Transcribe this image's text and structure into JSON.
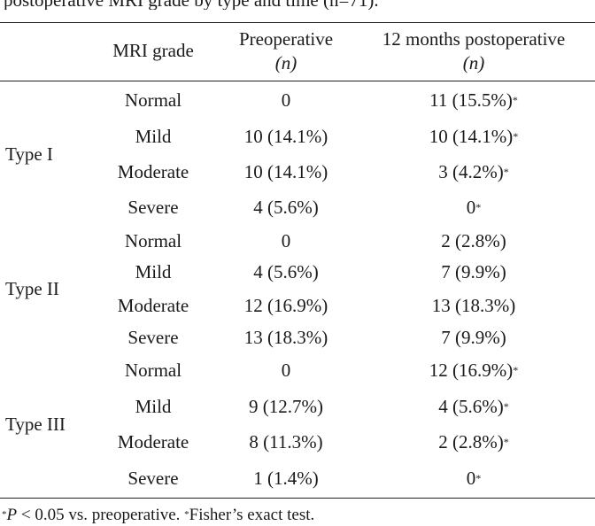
{
  "caption": "postoperative MRI grade by type and time (n=71).",
  "headers": {
    "grade": "MRI grade",
    "pre_line1": "Preoperative",
    "pre_line2": "(n)",
    "post_line1": "12 months postoperative",
    "post_line2": "(n)"
  },
  "groups": [
    {
      "type": "Type I",
      "rows": [
        {
          "grade": "Normal",
          "pre": "0",
          "post": "11 (15.5%)",
          "post_mark": "*"
        },
        {
          "grade": "Mild",
          "pre": "10 (14.1%)",
          "post": "10 (14.1%)",
          "post_mark": "*"
        },
        {
          "grade": "Moderate",
          "pre": "10 (14.1%)",
          "post": "3 (4.2%)",
          "post_mark": "*"
        },
        {
          "grade": "Severe",
          "pre": "4 (5.6%)",
          "post": "0",
          "post_mark": "*"
        }
      ]
    },
    {
      "type": "Type II",
      "rows": [
        {
          "grade": "Normal",
          "pre": "0",
          "post": "2 (2.8%)",
          "post_mark": ""
        },
        {
          "grade": "Mild",
          "pre": "4 (5.6%)",
          "post": "7 (9.9%)",
          "post_mark": ""
        },
        {
          "grade": "Moderate",
          "pre": "12 (16.9%)",
          "post": "13 (18.3%)",
          "post_mark": ""
        },
        {
          "grade": "Severe",
          "pre": "13 (18.3%)",
          "post": "7 (9.9%)",
          "post_mark": ""
        }
      ]
    },
    {
      "type": "Type III",
      "rows": [
        {
          "grade": "Normal",
          "pre": "0",
          "post": "12 (16.9%)",
          "post_mark": "*"
        },
        {
          "grade": "Mild",
          "pre": "9 (12.7%)",
          "post": "4 (5.6%)",
          "post_mark": "*"
        },
        {
          "grade": "Moderate",
          "pre": "8 (11.3%)",
          "post": "2 (2.8%)",
          "post_mark": "*"
        },
        {
          "grade": "Severe",
          "pre": "1 (1.4%)",
          "post": "0",
          "post_mark": "*"
        }
      ]
    }
  ],
  "footnote": {
    "mark1": "*",
    "p": "P",
    "text1": " < 0.05 vs. preoperative. ",
    "mark2": "*",
    "text2": "Fisher’s exact test."
  }
}
